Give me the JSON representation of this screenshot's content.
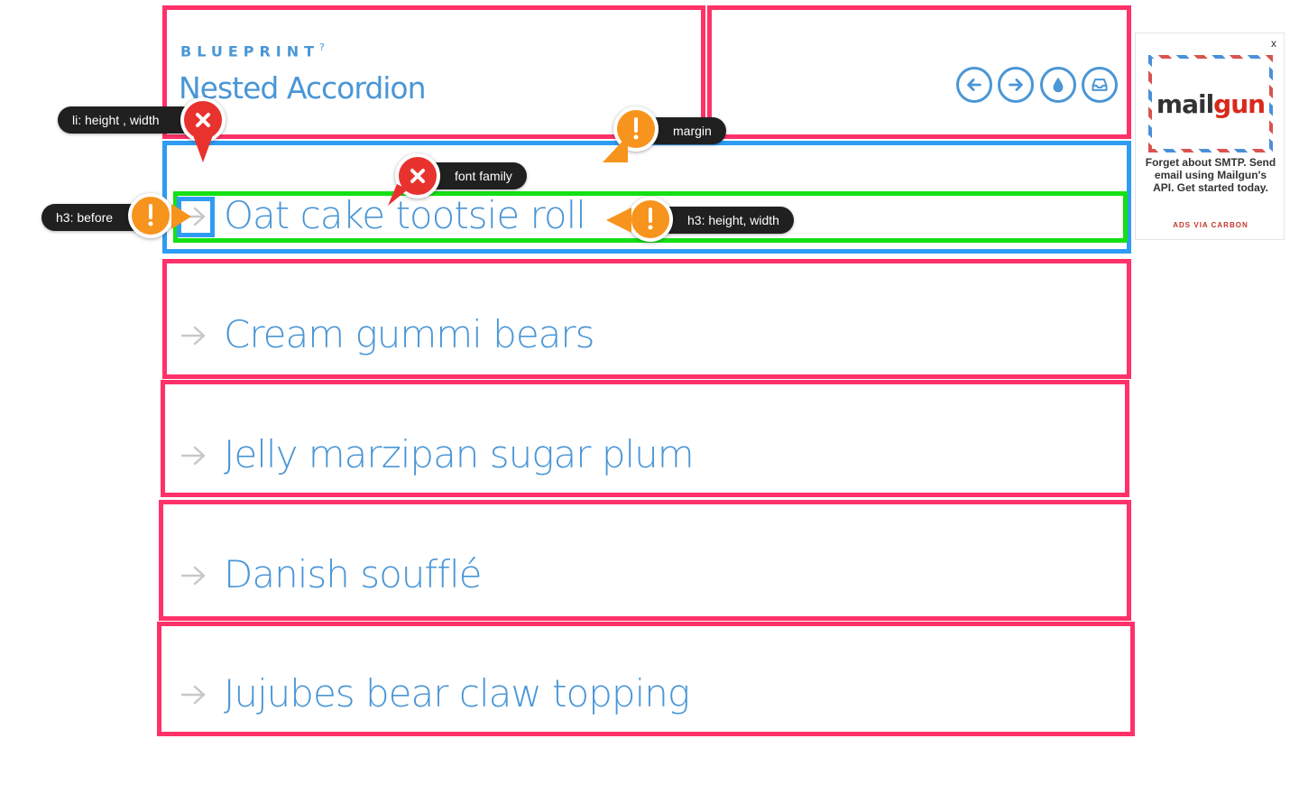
{
  "header": {
    "brand": "BLUEPRINT",
    "brand_help": "?",
    "title": "Nested Accordion"
  },
  "nav_buttons": [
    {
      "icon": "arrow-left-icon",
      "label": "previous"
    },
    {
      "icon": "arrow-right-icon",
      "label": "next"
    },
    {
      "icon": "drop-icon",
      "label": "theme"
    },
    {
      "icon": "inbox-icon",
      "label": "download"
    }
  ],
  "accordion": {
    "items": [
      {
        "label": "Oat cake tootsie roll"
      },
      {
        "label": "Cream gummi bears"
      },
      {
        "label": "Jelly marzipan sugar plum"
      },
      {
        "label": "Danish soufflé"
      },
      {
        "label": "Jujubes bear claw topping"
      }
    ]
  },
  "annotations": {
    "li_size": "li: height , width",
    "margin": "margin",
    "font_family": "font family",
    "h3_before": "h3: before",
    "h3_size": "h3: height, width"
  },
  "ad": {
    "close": "x",
    "logo_main": "mail",
    "logo_accent": "gun",
    "text": "Forget about SMTP. Send email using Mailgun's API. Get started today.",
    "via": "ADS VIA CARBON"
  },
  "colors": {
    "accent_blue": "#4a96d6",
    "outline_pink": "#ff3168",
    "outline_blue": "#2f9cf4",
    "outline_green": "#14e014",
    "error_red": "#e8322e",
    "warning_orange": "#f7941d"
  }
}
